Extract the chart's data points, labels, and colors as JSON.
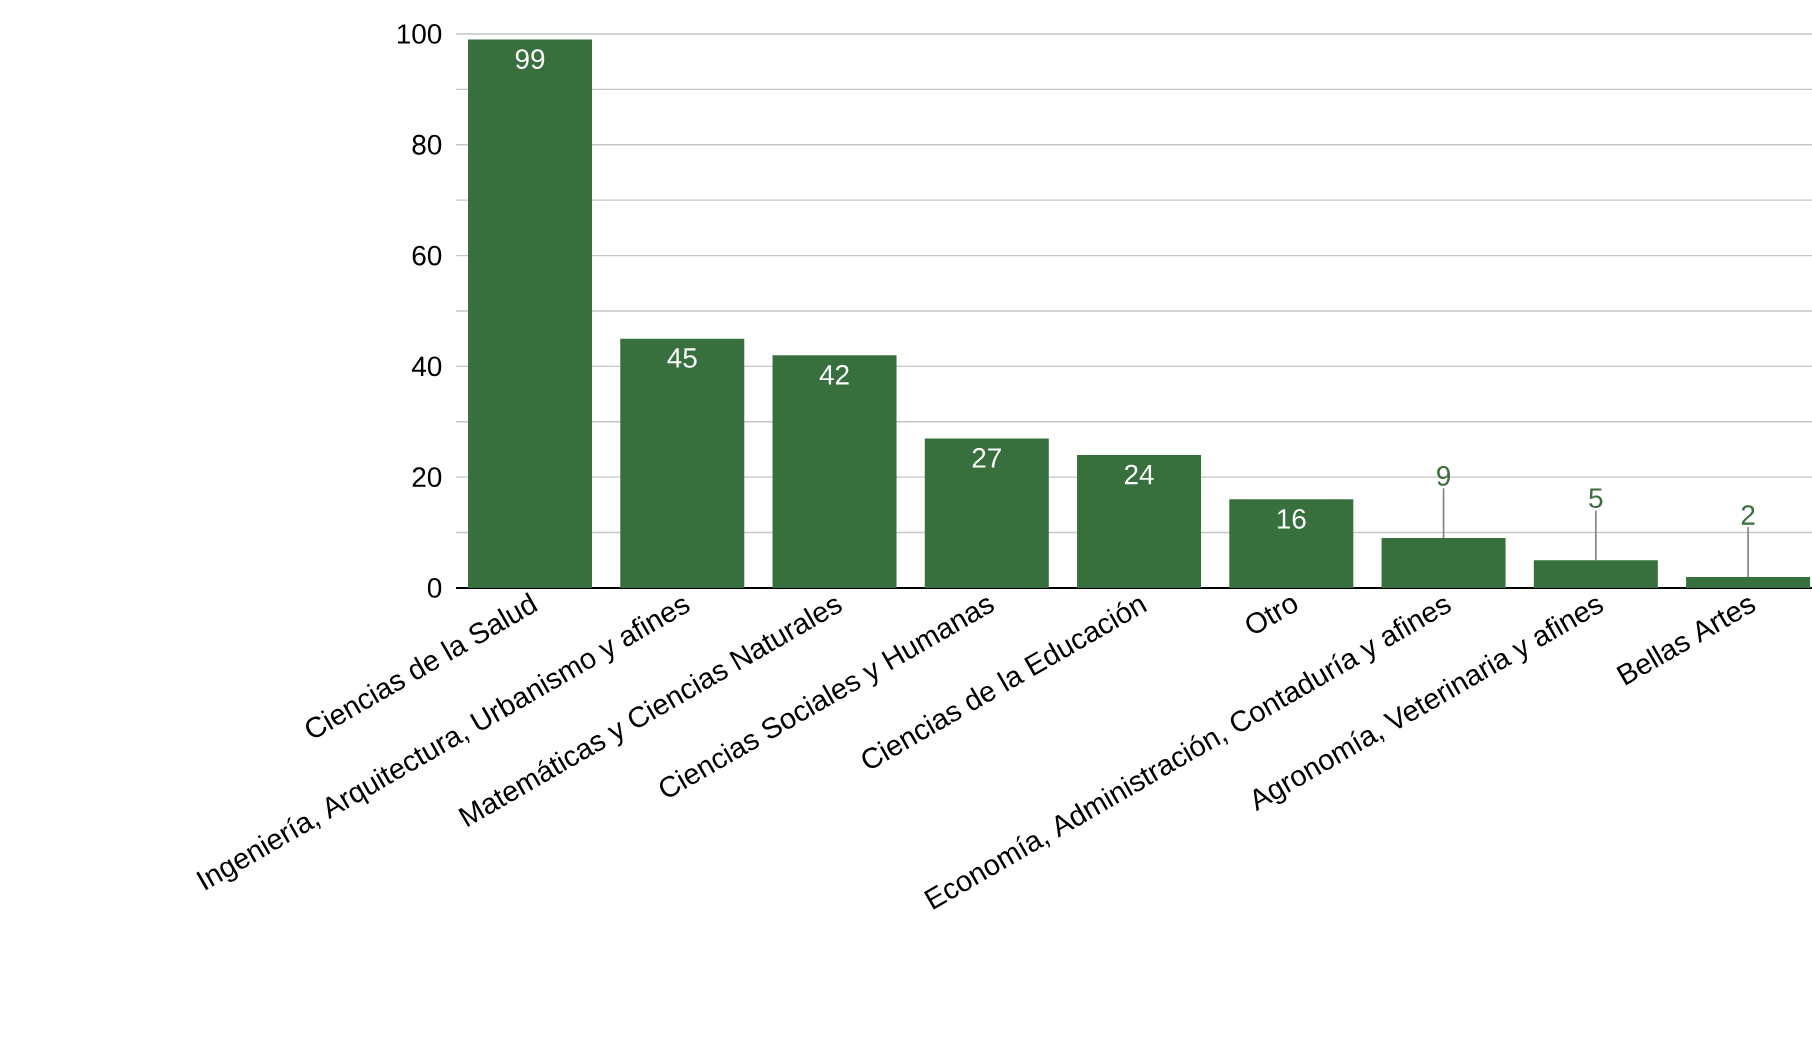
{
  "chart_data": {
    "type": "bar",
    "categories": [
      "Ciencias de la Salud",
      "Ingeniería, Arquitectura, Urbanismo y afines",
      "Matemáticas y Ciencias Naturales",
      "Ciencias Sociales y Humanas",
      "Ciencias de la Educación",
      "Otro",
      "Economía, Administración, Contaduría y afines",
      "Agronomía, Veterinaria y afines",
      "Bellas Artes"
    ],
    "values": [
      99,
      45,
      42,
      27,
      24,
      16,
      9,
      5,
      2
    ],
    "color": "#37703d",
    "ylim": [
      0,
      100
    ],
    "yticks": [
      0,
      {
        "value": 10,
        "label": null
      },
      20,
      {
        "value": 30,
        "label": null
      },
      40,
      {
        "value": 50,
        "label": null
      },
      60,
      {
        "value": 70,
        "label": null
      },
      80,
      {
        "value": 90,
        "label": null
      },
      100
    ],
    "grid": "y",
    "data_labels": true
  }
}
